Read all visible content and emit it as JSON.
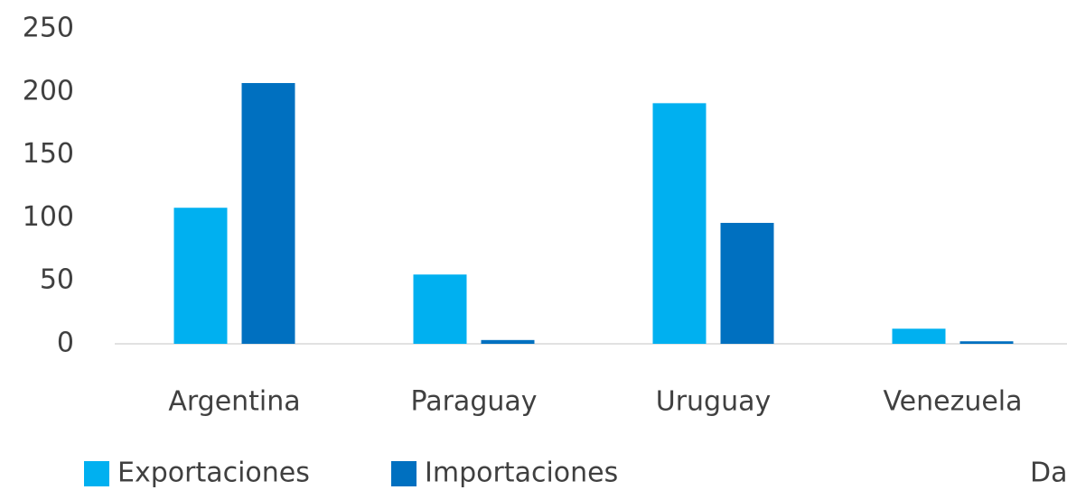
{
  "chart_data": {
    "type": "bar",
    "categories": [
      "Argentina",
      "Paraguay",
      "Uruguay",
      "Venezuela"
    ],
    "series": [
      {
        "name": "Exportaciones",
        "color": "#00b0f0",
        "values": [
          108,
          55,
          191,
          12
        ]
      },
      {
        "name": "Importaciones",
        "color": "#0070c0",
        "values": [
          207,
          3,
          96,
          2
        ]
      }
    ],
    "ylim": [
      0,
      250
    ],
    "yticks": [
      0,
      50,
      100,
      150,
      200,
      250
    ],
    "grid": false,
    "legend": "bottom",
    "annotation": "Da"
  }
}
